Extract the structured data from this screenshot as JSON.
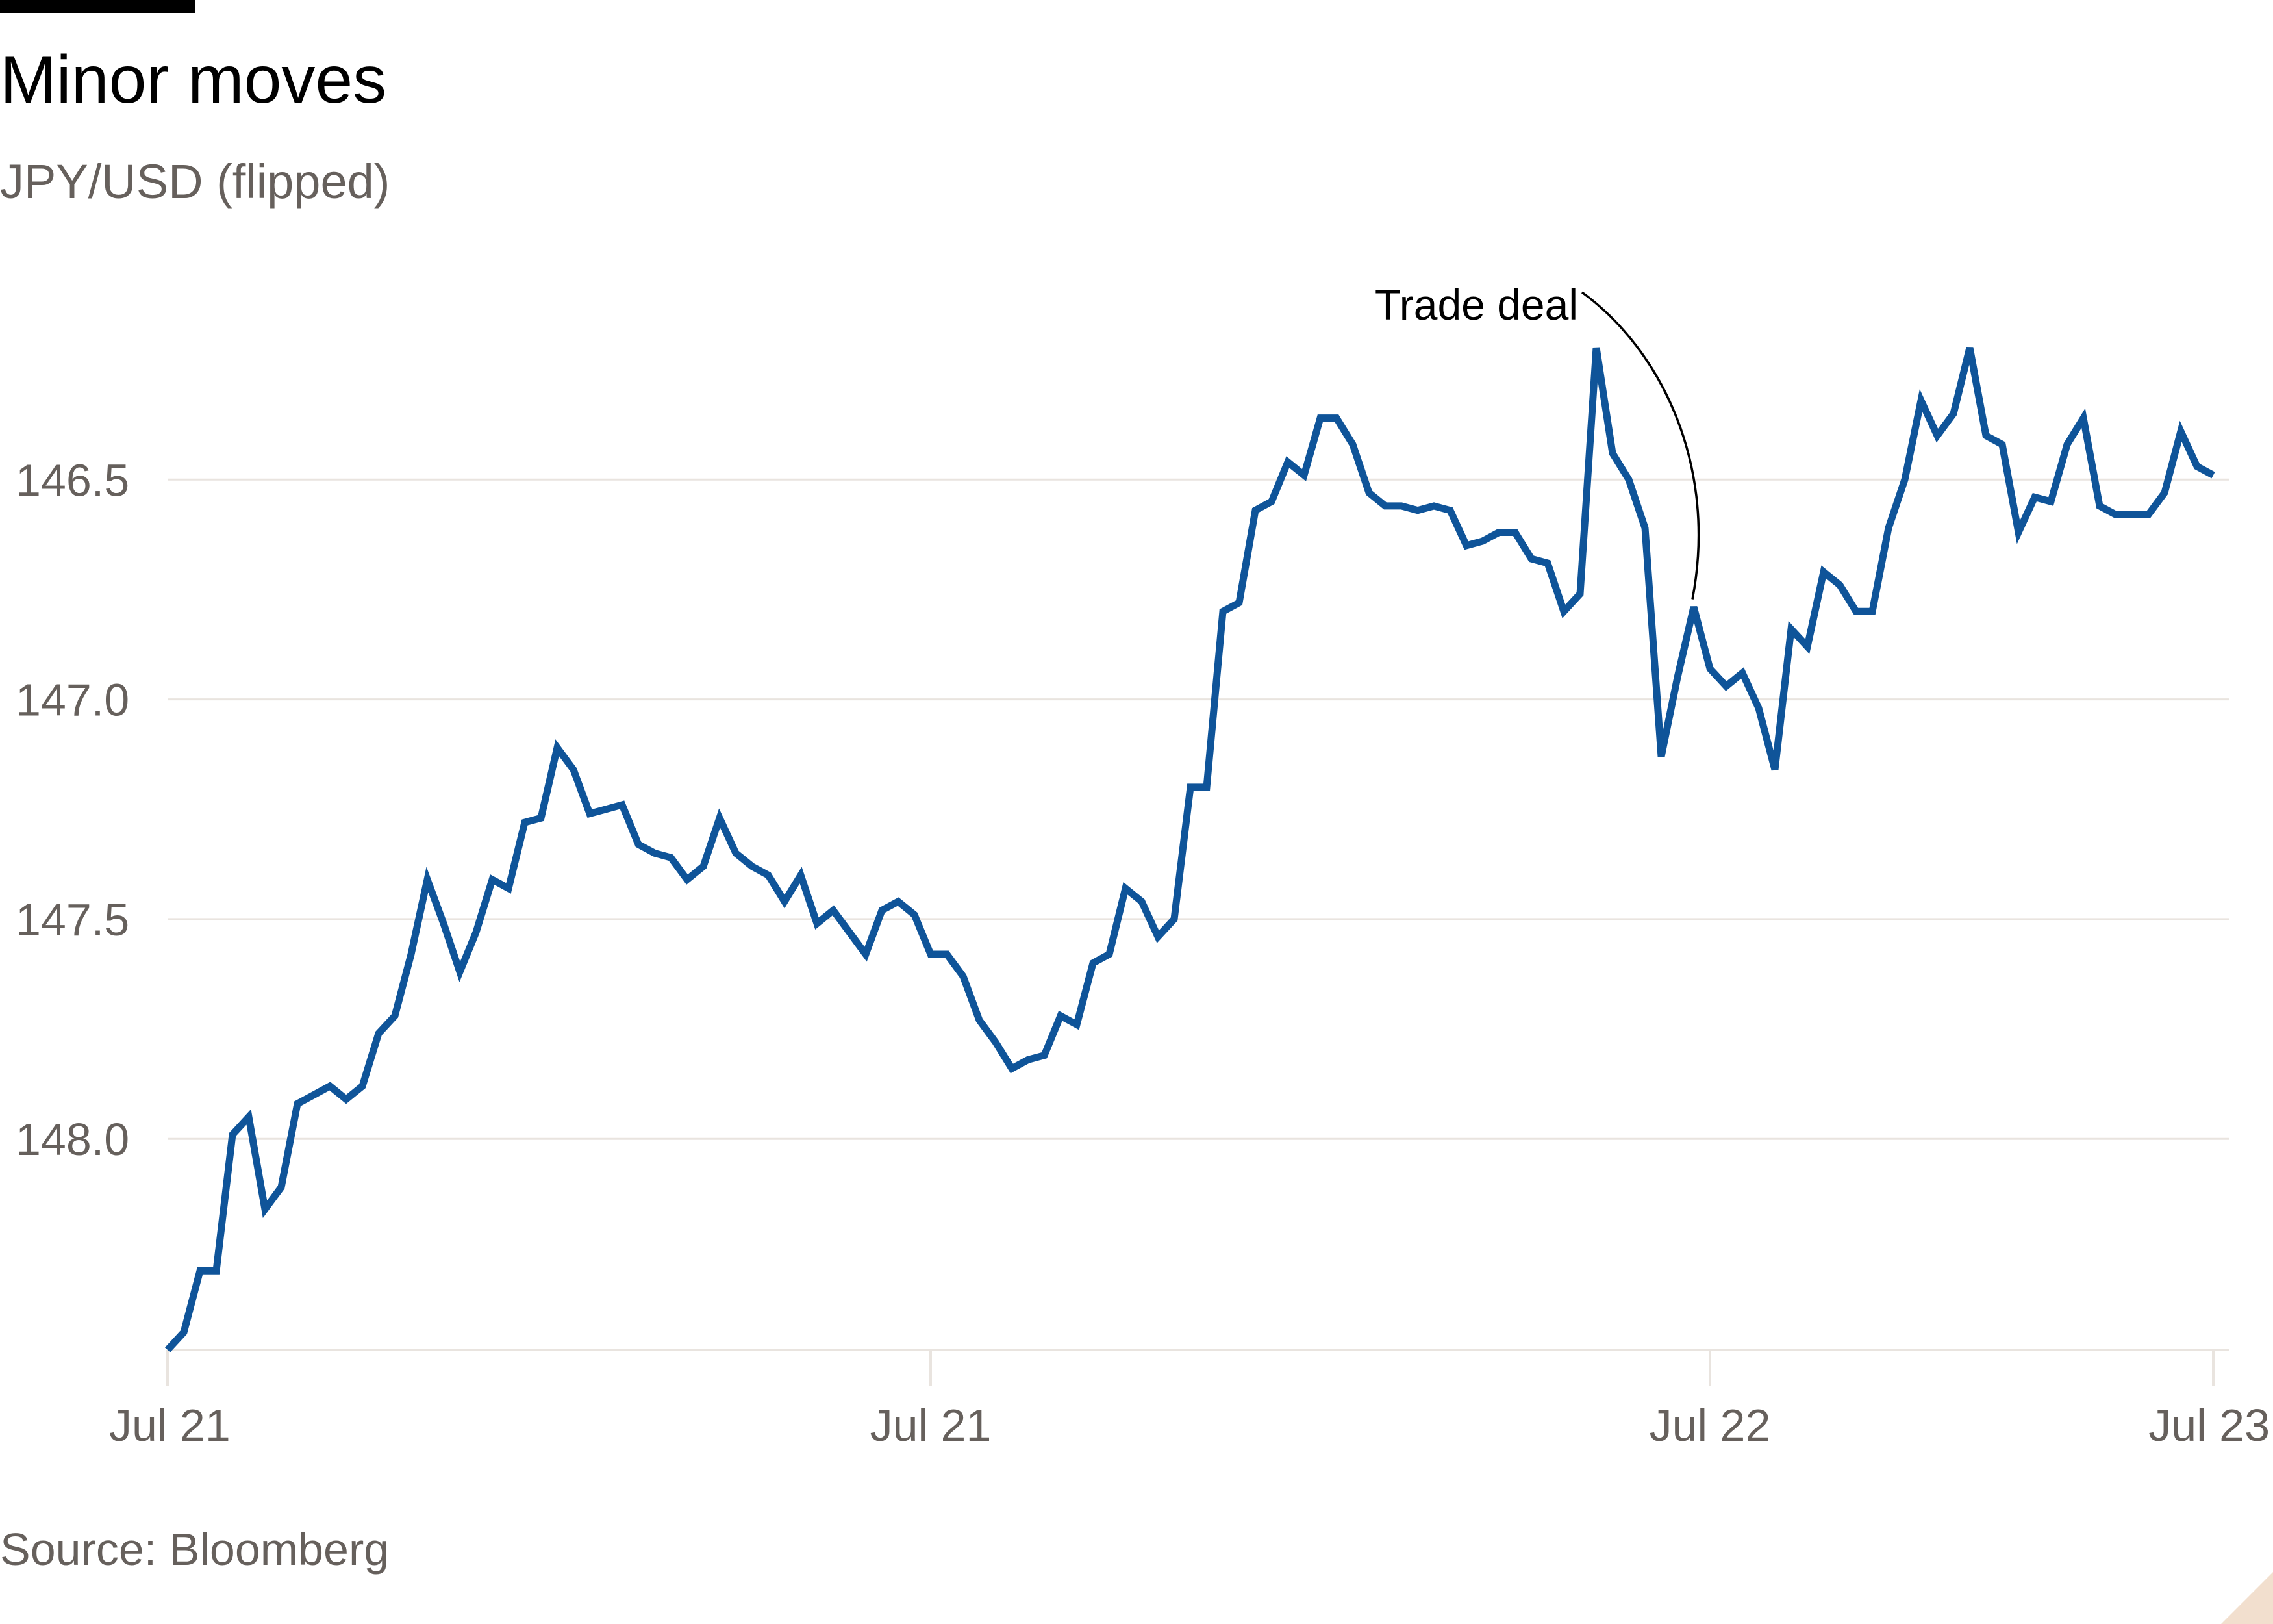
{
  "header": {
    "title": "Minor moves",
    "subtitle": "JPY/USD (flipped)"
  },
  "footer": {
    "source": "Source: Bloomberg"
  },
  "colors": {
    "line": "#0f5499",
    "grid": "#e9e4df",
    "axis_text": "#66605c",
    "annotation": "#000000"
  },
  "chart_data": {
    "type": "line",
    "title": "Minor moves",
    "subtitle": "JPY/USD (flipped)",
    "xlabel": "",
    "ylabel": "",
    "y_inverted": true,
    "ylim": [
      148.48,
      146.0
    ],
    "y_ticks": [
      146.5,
      147.0,
      147.5,
      148.0
    ],
    "y_tick_labels": [
      "146.5",
      "147.0",
      "147.5",
      "148.0"
    ],
    "grid": true,
    "x_ticks": [
      {
        "index": 0,
        "label": "Jul 21"
      },
      {
        "index": 47,
        "label": "Jul 21"
      },
      {
        "index": 95,
        "label": "Jul 22"
      },
      {
        "index": 126,
        "label": "Jul 23"
      }
    ],
    "x_count": 127,
    "series": [
      {
        "values": [
          148.48,
          148.44,
          148.3,
          148.3,
          147.99,
          147.95,
          148.16,
          148.11,
          147.92,
          147.9,
          147.88,
          147.91,
          147.88,
          147.76,
          147.72,
          147.58,
          147.41,
          147.51,
          147.62,
          147.53,
          147.41,
          147.43,
          147.28,
          147.27,
          147.11,
          147.16,
          147.26,
          147.25,
          147.24,
          147.33,
          147.35,
          147.36,
          147.41,
          147.38,
          147.27,
          147.35,
          147.38,
          147.4,
          147.46,
          147.4,
          147.51,
          147.48,
          147.53,
          147.58,
          147.48,
          147.46,
          147.49,
          147.58,
          147.58,
          147.63,
          147.73,
          147.78,
          147.84,
          147.82,
          147.81,
          147.72,
          147.74,
          147.6,
          147.58,
          147.43,
          147.46,
          147.54,
          147.5,
          147.2,
          147.2,
          146.8,
          146.78,
          146.57,
          146.55,
          146.46,
          146.49,
          146.36,
          146.36,
          146.42,
          146.53,
          146.56,
          146.56,
          146.57,
          146.56,
          146.57,
          146.65,
          146.64,
          146.62,
          146.62,
          146.68,
          146.69,
          146.8,
          146.76,
          146.2,
          146.44,
          146.5,
          146.61,
          147.13,
          146.95,
          146.79,
          146.93,
          146.97,
          146.94,
          147.02,
          147.16,
          146.84,
          146.88,
          146.71,
          146.74,
          146.8,
          146.8,
          146.61,
          146.5,
          146.32,
          146.4,
          146.35,
          146.2,
          146.4,
          146.42,
          146.62,
          146.54,
          146.55,
          146.42,
          146.36,
          146.56,
          146.58,
          146.58,
          146.58,
          146.53,
          146.39,
          146.47,
          146.49
        ]
      }
    ],
    "annotations": [
      {
        "text": "Trade deal",
        "index": 94,
        "value": 146.79
      }
    ]
  }
}
